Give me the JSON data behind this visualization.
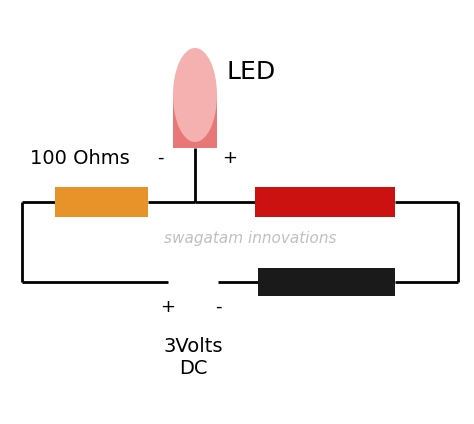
{
  "bg_color": "#ffffff",
  "watermark": "swagatam innovations",
  "watermark_color": "#c0c0c0",
  "watermark_fontsize": 11,
  "led_label": "LED",
  "led_label_fontsize": 18,
  "led_body_color": "#e87878",
  "led_tip_color": "#f5b0b0",
  "led_minus_label": "-",
  "led_plus_label": "+",
  "resistor_label": "100 Ohms",
  "resistor_label_fontsize": 14,
  "resistor_color": "#e8922a",
  "red_probe_color": "#cc1111",
  "black_probe_color": "#1a1a1a",
  "battery_label": "3Volts\nDC",
  "battery_label_fontsize": 14,
  "line_color": "#000000",
  "line_width": 2.0,
  "plus_label": "+",
  "minus_label": "-",
  "plus_minus_fontsize": 13
}
